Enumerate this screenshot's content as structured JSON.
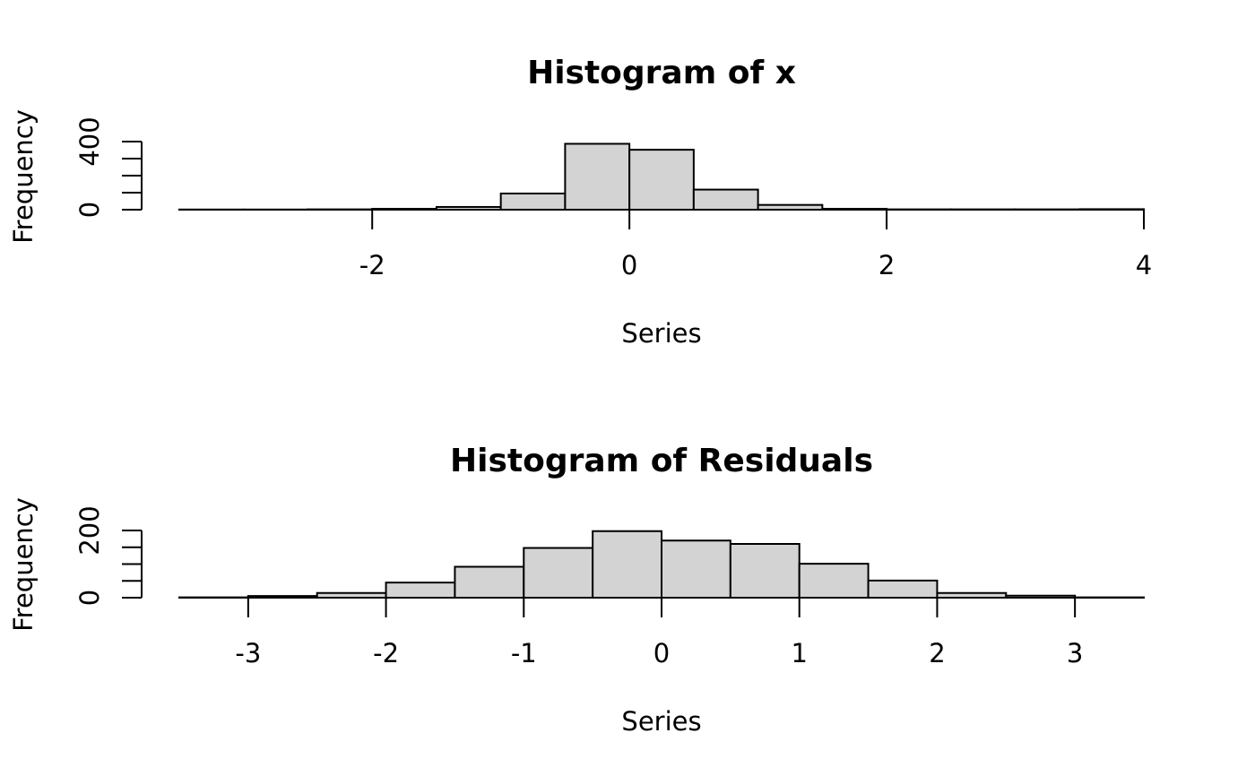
{
  "chart_data": [
    {
      "type": "bar",
      "title": "Histogram of x",
      "xlabel": "Series",
      "ylabel": "Frequency",
      "x_ticks": [
        "-2",
        "0",
        "2",
        "4"
      ],
      "y_ticks": [
        "0",
        "400"
      ],
      "bin_width": 0.5,
      "bin_starts": [
        -3.5,
        -3.0,
        -2.5,
        -2.0,
        -1.5,
        -1.0,
        -0.5,
        0.0,
        0.5,
        1.0,
        1.5,
        2.0,
        2.5,
        3.0,
        3.5
      ],
      "values": [
        1,
        1,
        2,
        5,
        16,
        95,
        387,
        352,
        118,
        28,
        5,
        2,
        2,
        2,
        3
      ],
      "xlim": [
        -3.5,
        4.0
      ],
      "ylim": [
        0,
        400
      ],
      "grid": false
    },
    {
      "type": "bar",
      "title": "Histogram of Residuals",
      "xlabel": "Series",
      "ylabel": "Frequency",
      "x_ticks": [
        "-3",
        "-2",
        "-1",
        "0",
        "1",
        "2",
        "3"
      ],
      "y_ticks": [
        "0",
        "200"
      ],
      "bin_width": 0.5,
      "bin_starts": [
        -3.5,
        -3.0,
        -2.5,
        -2.0,
        -1.5,
        -1.0,
        -0.5,
        0.0,
        0.5,
        1.0,
        1.5,
        2.0,
        2.5,
        3.0
      ],
      "values": [
        1,
        5,
        14,
        45,
        92,
        148,
        198,
        170,
        160,
        101,
        51,
        14,
        6,
        1
      ],
      "xlim": [
        -3.5,
        3.5
      ],
      "ylim": [
        0,
        200
      ],
      "grid": false
    }
  ]
}
